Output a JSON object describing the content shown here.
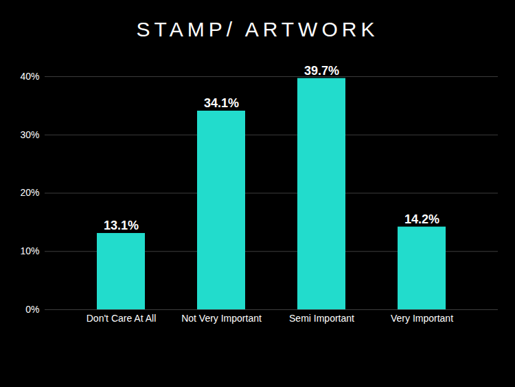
{
  "chart_data": {
    "type": "bar",
    "title": "STAMP/ ARTWORK",
    "categories": [
      "Don't Care At All",
      "Not Very Important",
      "Semi Important",
      "Very Important"
    ],
    "values": [
      13.1,
      34.1,
      39.7,
      14.2
    ],
    "value_labels": [
      "13.1%",
      "34.1%",
      "39.7%",
      "14.2%"
    ],
    "color": "#22dccc",
    "ylim": [
      0,
      40
    ],
    "yticks": [
      {
        "value": 0,
        "label": "0%"
      },
      {
        "value": 10,
        "label": "10%"
      },
      {
        "value": 20,
        "label": "20%"
      },
      {
        "value": 30,
        "label": "30%"
      },
      {
        "value": 40,
        "label": "40%"
      }
    ],
    "grid": true,
    "data_labels": true
  }
}
